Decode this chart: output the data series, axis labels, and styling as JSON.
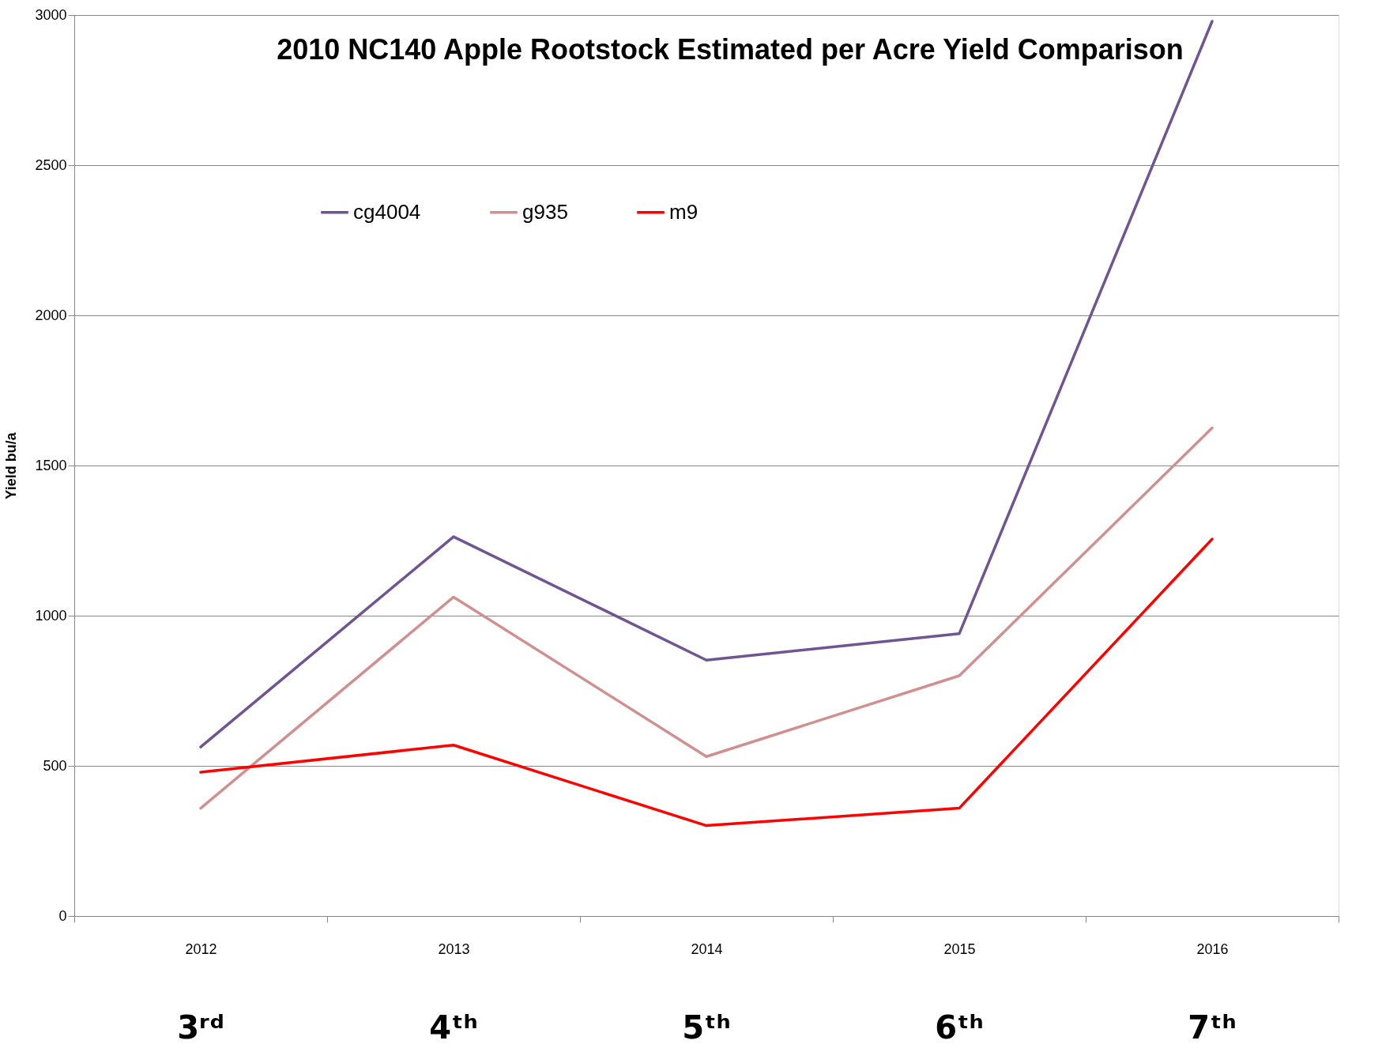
{
  "chart_data": {
    "type": "line",
    "title": "2010 NC140 Apple Rootstock Estimated per Acre Yield Comparison",
    "ylabel": "Yield bu/a",
    "categories": [
      "2012",
      "2013",
      "2014",
      "2015",
      "2016"
    ],
    "series": [
      {
        "name": "cg4004",
        "color": "#6f5592",
        "values": [
          563,
          1263,
          852,
          940,
          2979
        ]
      },
      {
        "name": "g935",
        "color": "#d09090",
        "values": [
          359,
          1062,
          531,
          800,
          1625
        ]
      },
      {
        "name": "m9",
        "color": "#ff0000",
        "values": [
          479,
          569,
          301,
          359,
          1255
        ]
      }
    ],
    "ylim": [
      0,
      3000
    ],
    "yticks": [
      0,
      500,
      1000,
      1500,
      2000,
      2500,
      3000
    ],
    "grid": "y",
    "legend": "top",
    "marker": "none",
    "line_style": "solid",
    "annotations": [
      "3ʳᵈ",
      "4ᵗʰ",
      "5ᵗʰ",
      "6ᵗʰ",
      "7ᵗʰ"
    ]
  }
}
